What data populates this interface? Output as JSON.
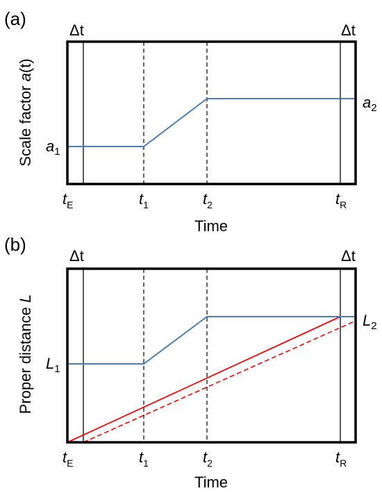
{
  "panels": [
    {
      "id": "a",
      "panel_label": "(a)",
      "ylabel_text": "Scale factor ",
      "ylabel_sym": "a",
      "ylabel_arg": "(t)",
      "xlabel": "Time",
      "delta_left": "Δt",
      "delta_right": "Δt",
      "level_low_sym": "a",
      "level_low_sub": "1",
      "level_high_sym": "a",
      "level_high_sub": "2",
      "ticks": [
        {
          "sym": "t",
          "sub": "E"
        },
        {
          "sym": "t",
          "sub": "1"
        },
        {
          "sym": "t",
          "sub": "2"
        },
        {
          "sym": "t",
          "sub": "R"
        }
      ],
      "colors": {
        "curve": "#4a7ebb"
      }
    },
    {
      "id": "b",
      "panel_label": "(b)",
      "ylabel_text": "Proper distance  ",
      "ylabel_sym": "L",
      "ylabel_arg": "",
      "xlabel": "Time",
      "delta_left": "Δt",
      "delta_right": "Δt",
      "level_low_sym": "L",
      "level_low_sub": "1",
      "level_high_sym": "L",
      "level_high_sub": "2",
      "ticks": [
        {
          "sym": "t",
          "sub": "E"
        },
        {
          "sym": "t",
          "sub": "1"
        },
        {
          "sym": "t",
          "sub": "2"
        },
        {
          "sym": "t",
          "sub": "R"
        }
      ],
      "colors": {
        "curve": "#4a7ebb",
        "light_path": "#ff0000"
      }
    }
  ]
}
